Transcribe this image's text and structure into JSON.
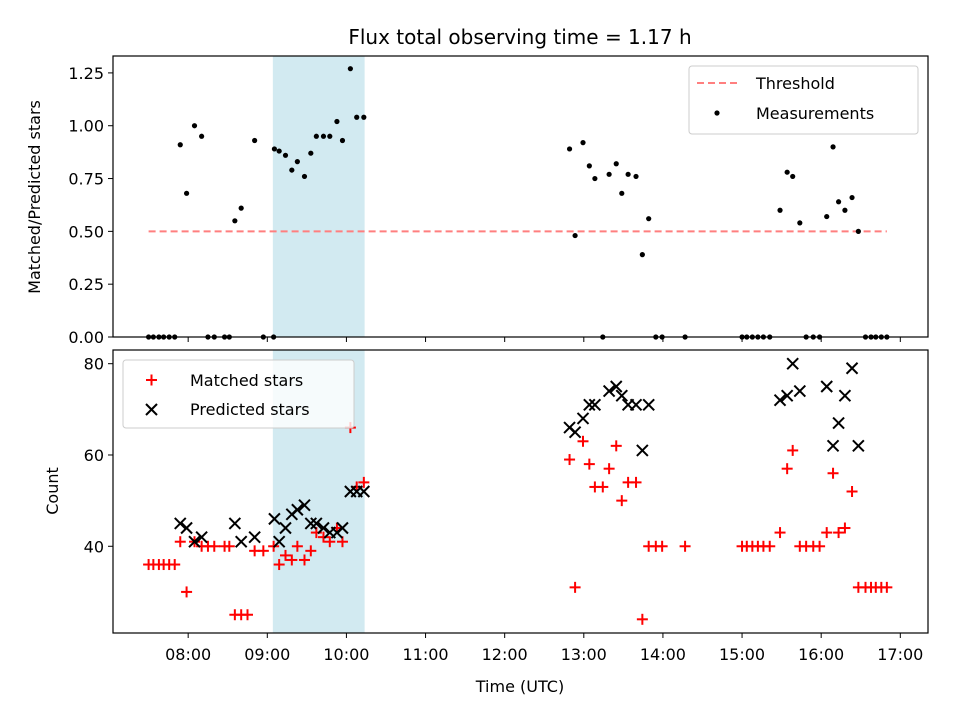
{
  "chart_data": {
    "title": "Flux total observing time = 1.17 h",
    "xlabel": "Time (UTC)",
    "x_unit": "hours UTC",
    "xlim": [
      7.05,
      17.35
    ],
    "xticks": [
      {
        "value": 8,
        "label": "08:00"
      },
      {
        "value": 9,
        "label": "09:00"
      },
      {
        "value": 10,
        "label": "10:00"
      },
      {
        "value": 11,
        "label": "11:00"
      },
      {
        "value": 12,
        "label": "12:00"
      },
      {
        "value": 13,
        "label": "13:00"
      },
      {
        "value": 14,
        "label": "14:00"
      },
      {
        "value": 15,
        "label": "15:00"
      },
      {
        "value": 16,
        "label": "16:00"
      },
      {
        "value": 17,
        "label": "17:00"
      }
    ],
    "shaded_span": {
      "x0": 9.07,
      "x1": 10.23,
      "color": "#add8e6"
    },
    "colors": {
      "threshold": "#ff7f7f",
      "measurements": "#000000",
      "matched": "#ff0000",
      "predicted": "#000000"
    },
    "panels": [
      {
        "type": "scatter",
        "ylabel": "Matched/Predicted stars",
        "ylim": [
          0,
          1.33
        ],
        "yticks": [
          {
            "value": 0,
            "label": "0.00"
          },
          {
            "value": 0.25,
            "label": "0.25"
          },
          {
            "value": 0.5,
            "label": "0.50"
          },
          {
            "value": 0.75,
            "label": "0.75"
          },
          {
            "value": 1.0,
            "label": "1.00"
          },
          {
            "value": 1.25,
            "label": "1.25"
          }
        ],
        "legend_position": "top-right",
        "threshold": {
          "name": "Threshold",
          "value": 0.5,
          "x_start": 7.5,
          "x_end": 16.83
        },
        "measurements": {
          "name": "Measurements",
          "points": [
            [
              7.5,
              0
            ],
            [
              7.56,
              0
            ],
            [
              7.63,
              0
            ],
            [
              7.69,
              0
            ],
            [
              7.76,
              0
            ],
            [
              7.83,
              0
            ],
            [
              7.9,
              0.91
            ],
            [
              7.98,
              0.68
            ],
            [
              8.08,
              1.0
            ],
            [
              8.17,
              0.95
            ],
            [
              8.25,
              0
            ],
            [
              8.33,
              0
            ],
            [
              8.46,
              0
            ],
            [
              8.52,
              0
            ],
            [
              8.59,
              0.55
            ],
            [
              8.67,
              0.61
            ],
            [
              8.84,
              0.93
            ],
            [
              8.95,
              0
            ],
            [
              9.08,
              0
            ],
            [
              9.09,
              0.89
            ],
            [
              9.15,
              0.88
            ],
            [
              9.23,
              0.86
            ],
            [
              9.31,
              0.79
            ],
            [
              9.38,
              0.83
            ],
            [
              9.47,
              0.76
            ],
            [
              9.55,
              0.87
            ],
            [
              9.62,
              0.95
            ],
            [
              9.71,
              0.95
            ],
            [
              9.79,
              0.95
            ],
            [
              9.88,
              1.02
            ],
            [
              9.95,
              0.93
            ],
            [
              10.05,
              1.27
            ],
            [
              10.13,
              1.04
            ],
            [
              10.22,
              1.04
            ],
            [
              12.82,
              0.89
            ],
            [
              12.89,
              0.48
            ],
            [
              12.99,
              0.92
            ],
            [
              13.07,
              0.81
            ],
            [
              13.14,
              0.75
            ],
            [
              13.24,
              0
            ],
            [
              13.32,
              0.77
            ],
            [
              13.41,
              0.82
            ],
            [
              13.48,
              0.68
            ],
            [
              13.56,
              0.77
            ],
            [
              13.66,
              0.76
            ],
            [
              13.74,
              0.39
            ],
            [
              13.82,
              0.56
            ],
            [
              13.91,
              0
            ],
            [
              13.99,
              0
            ],
            [
              14.28,
              0
            ],
            [
              15.0,
              0
            ],
            [
              15.06,
              0
            ],
            [
              15.13,
              0
            ],
            [
              15.2,
              0
            ],
            [
              15.27,
              0
            ],
            [
              15.35,
              0
            ],
            [
              15.48,
              0.6
            ],
            [
              15.57,
              0.78
            ],
            [
              15.64,
              0.76
            ],
            [
              15.73,
              0.54
            ],
            [
              15.81,
              0
            ],
            [
              15.9,
              0
            ],
            [
              15.98,
              0
            ],
            [
              16.07,
              0.57
            ],
            [
              16.15,
              0.9
            ],
            [
              16.22,
              0.64
            ],
            [
              16.3,
              0.6
            ],
            [
              16.39,
              0.66
            ],
            [
              16.47,
              0.5
            ],
            [
              16.56,
              0
            ],
            [
              16.63,
              0
            ],
            [
              16.69,
              0
            ],
            [
              16.76,
              0
            ],
            [
              16.83,
              0
            ]
          ]
        }
      },
      {
        "type": "scatter",
        "ylabel": "Count",
        "ylim": [
          21,
          83
        ],
        "yticks": [
          {
            "value": 40,
            "label": "40"
          },
          {
            "value": 60,
            "label": "60"
          },
          {
            "value": 80,
            "label": "80"
          }
        ],
        "legend_position": "top-left",
        "series": [
          {
            "name": "Matched stars",
            "marker": "plus",
            "points": [
              [
                7.5,
                36
              ],
              [
                7.56,
                36
              ],
              [
                7.63,
                36
              ],
              [
                7.69,
                36
              ],
              [
                7.76,
                36
              ],
              [
                7.83,
                36
              ],
              [
                7.9,
                41
              ],
              [
                7.98,
                30
              ],
              [
                8.08,
                41
              ],
              [
                8.17,
                40
              ],
              [
                8.25,
                40
              ],
              [
                8.33,
                40
              ],
              [
                8.46,
                40
              ],
              [
                8.52,
                40
              ],
              [
                8.59,
                25
              ],
              [
                8.67,
                25
              ],
              [
                8.75,
                25
              ],
              [
                8.84,
                39
              ],
              [
                8.95,
                39
              ],
              [
                9.08,
                40
              ],
              [
                9.15,
                36
              ],
              [
                9.23,
                38
              ],
              [
                9.31,
                37
              ],
              [
                9.38,
                40
              ],
              [
                9.47,
                37
              ],
              [
                9.55,
                39
              ],
              [
                9.62,
                43
              ],
              [
                9.71,
                42
              ],
              [
                9.79,
                41
              ],
              [
                9.88,
                44
              ],
              [
                9.95,
                41
              ],
              [
                10.05,
                66
              ],
              [
                10.13,
                53
              ],
              [
                10.22,
                54
              ],
              [
                12.82,
                59
              ],
              [
                12.89,
                31
              ],
              [
                12.99,
                63
              ],
              [
                13.07,
                58
              ],
              [
                13.14,
                53
              ],
              [
                13.24,
                53
              ],
              [
                13.32,
                57
              ],
              [
                13.41,
                62
              ],
              [
                13.48,
                50
              ],
              [
                13.56,
                54
              ],
              [
                13.66,
                54
              ],
              [
                13.74,
                24
              ],
              [
                13.82,
                40
              ],
              [
                13.91,
                40
              ],
              [
                13.99,
                40
              ],
              [
                14.28,
                40
              ],
              [
                15.0,
                40
              ],
              [
                15.06,
                40
              ],
              [
                15.13,
                40
              ],
              [
                15.2,
                40
              ],
              [
                15.27,
                40
              ],
              [
                15.35,
                40
              ],
              [
                15.48,
                43
              ],
              [
                15.57,
                57
              ],
              [
                15.64,
                61
              ],
              [
                15.73,
                40
              ],
              [
                15.81,
                40
              ],
              [
                15.9,
                40
              ],
              [
                15.98,
                40
              ],
              [
                16.07,
                43
              ],
              [
                16.15,
                56
              ],
              [
                16.22,
                43
              ],
              [
                16.3,
                44
              ],
              [
                16.39,
                52
              ],
              [
                16.47,
                31
              ],
              [
                16.56,
                31
              ],
              [
                16.63,
                31
              ],
              [
                16.69,
                31
              ],
              [
                16.76,
                31
              ],
              [
                16.83,
                31
              ]
            ]
          },
          {
            "name": "Predicted stars",
            "marker": "x",
            "points": [
              [
                7.9,
                45
              ],
              [
                7.98,
                44
              ],
              [
                8.08,
                41
              ],
              [
                8.17,
                42
              ],
              [
                8.59,
                45
              ],
              [
                8.67,
                41
              ],
              [
                8.84,
                42
              ],
              [
                9.09,
                46
              ],
              [
                9.15,
                41
              ],
              [
                9.23,
                44
              ],
              [
                9.31,
                47
              ],
              [
                9.38,
                48
              ],
              [
                9.47,
                49
              ],
              [
                9.55,
                45
              ],
              [
                9.62,
                45
              ],
              [
                9.71,
                44
              ],
              [
                9.79,
                43
              ],
              [
                9.88,
                43
              ],
              [
                9.95,
                44
              ],
              [
                10.05,
                52
              ],
              [
                10.13,
                52
              ],
              [
                10.22,
                52
              ],
              [
                12.82,
                66
              ],
              [
                12.89,
                65
              ],
              [
                12.99,
                68
              ],
              [
                13.07,
                71
              ],
              [
                13.14,
                71
              ],
              [
                13.32,
                74
              ],
              [
                13.41,
                75
              ],
              [
                13.48,
                73
              ],
              [
                13.56,
                71
              ],
              [
                13.74,
                61
              ],
              [
                13.66,
                71
              ],
              [
                13.82,
                71
              ],
              [
                15.48,
                72
              ],
              [
                15.57,
                73
              ],
              [
                15.64,
                80
              ],
              [
                15.73,
                74
              ],
              [
                16.07,
                75
              ],
              [
                16.15,
                62
              ],
              [
                16.22,
                67
              ],
              [
                16.3,
                73
              ],
              [
                16.39,
                79
              ],
              [
                16.47,
                62
              ]
            ]
          }
        ]
      }
    ]
  }
}
